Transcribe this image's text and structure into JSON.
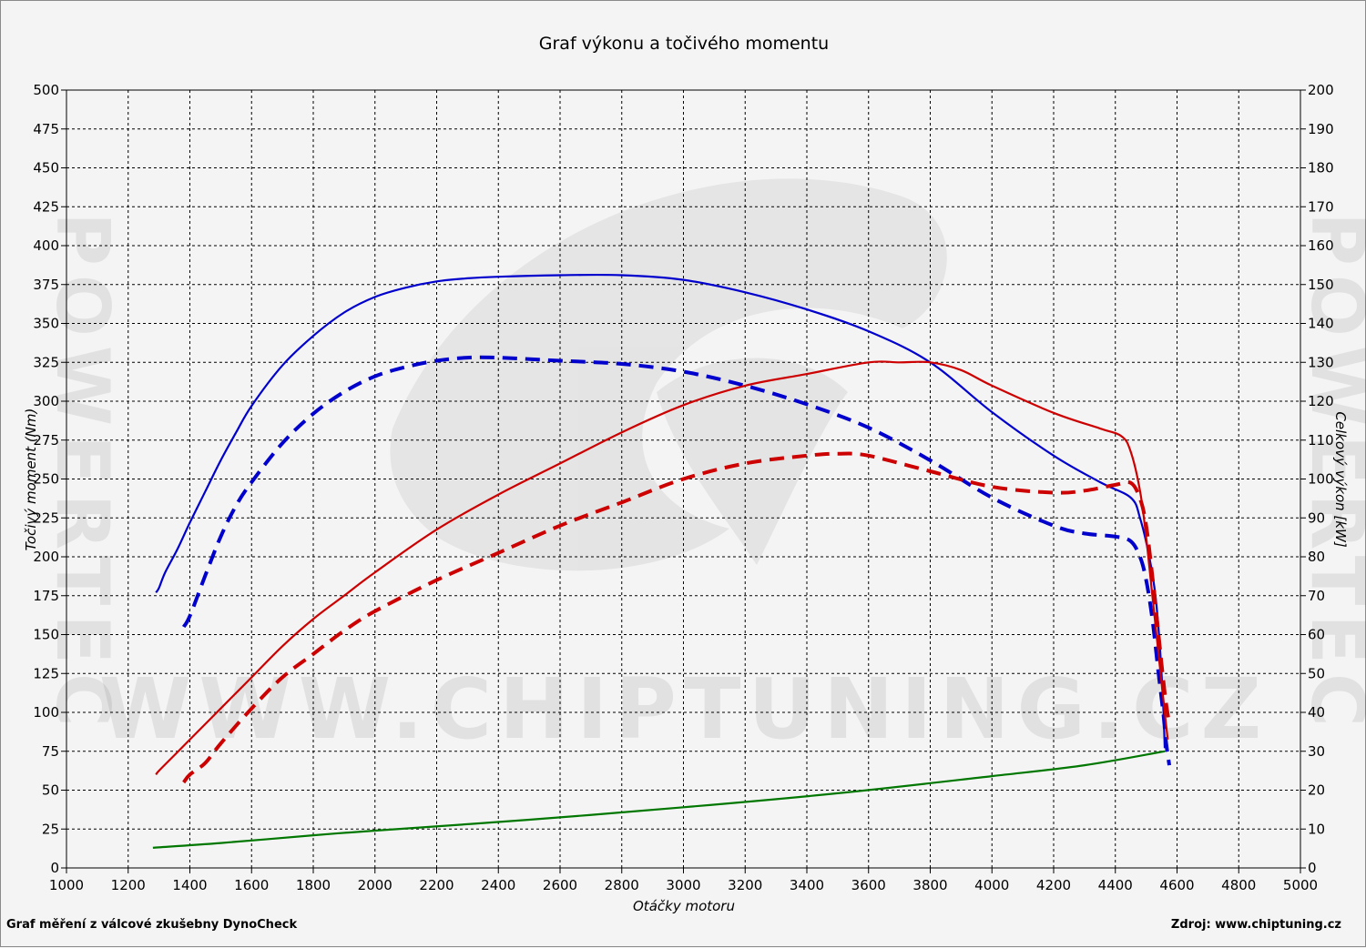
{
  "chart_data": {
    "type": "line",
    "title": "Graf výkonu a točivého momentu",
    "xlabel": "Otáčky motoru",
    "ylabel_left": "Točivý moment (Nm)",
    "ylabel_right": "Celkový výkon [kW]",
    "xlim": [
      1000,
      5000
    ],
    "ylim_left": [
      0,
      500
    ],
    "ylim_right": [
      0,
      200
    ],
    "x_ticks": [
      1000,
      1200,
      1400,
      1600,
      1800,
      2000,
      2200,
      2400,
      2600,
      2800,
      3000,
      3200,
      3400,
      3600,
      3800,
      4000,
      4200,
      4400,
      4600,
      4800,
      5000
    ],
    "y_left_ticks": [
      0,
      25,
      50,
      75,
      100,
      125,
      150,
      175,
      200,
      225,
      250,
      275,
      300,
      325,
      350,
      375,
      400,
      425,
      450,
      475,
      500
    ],
    "y_right_ticks": [
      0,
      10,
      20,
      30,
      40,
      50,
      60,
      70,
      80,
      90,
      100,
      110,
      120,
      130,
      140,
      150,
      160,
      170,
      180,
      190,
      200
    ],
    "grid": true,
    "series": [
      {
        "key": "torque_tuned",
        "axis": "left",
        "color": "#0000cc",
        "dash": false,
        "x": [
          1290,
          1300,
          1320,
          1360,
          1400,
          1450,
          1500,
          1550,
          1600,
          1700,
          1800,
          1900,
          2000,
          2100,
          2200,
          2300,
          2400,
          2600,
          2800,
          3000,
          3200,
          3400,
          3600,
          3800,
          4000,
          4200,
          4350,
          4450,
          4480,
          4510,
          4530,
          4545,
          4555,
          4560
        ],
        "y": [
          177,
          180,
          190,
          205,
          222,
          242,
          262,
          280,
          297,
          323,
          342,
          357,
          367,
          373,
          377,
          379,
          380,
          381,
          381,
          378,
          370,
          359,
          345,
          325,
          293,
          265,
          248,
          238,
          225,
          200,
          175,
          140,
          105,
          77
        ]
      },
      {
        "key": "torque_stock",
        "axis": "left",
        "color": "#0000cc",
        "dash": true,
        "x": [
          1380,
          1400,
          1450,
          1500,
          1550,
          1600,
          1700,
          1800,
          1900,
          2000,
          2100,
          2200,
          2300,
          2400,
          2600,
          2800,
          3000,
          3200,
          3400,
          3600,
          3800,
          4000,
          4200,
          4300,
          4400,
          4450,
          4480,
          4500,
          4520,
          4540,
          4555,
          4565,
          4575
        ],
        "y": [
          155,
          162,
          188,
          213,
          233,
          248,
          273,
          292,
          306,
          316,
          322,
          326,
          328,
          328,
          326,
          324,
          319,
          310,
          298,
          283,
          262,
          238,
          220,
          215,
          213,
          210,
          200,
          185,
          160,
          125,
          100,
          80,
          66
        ]
      },
      {
        "key": "power_tuned",
        "axis": "right",
        "color": "#cc0000",
        "dash": false,
        "x": [
          1290,
          1300,
          1350,
          1400,
          1500,
          1600,
          1700,
          1800,
          1900,
          2000,
          2200,
          2400,
          2600,
          2800,
          3000,
          3200,
          3400,
          3600,
          3700,
          3800,
          3900,
          4000,
          4200,
          4350,
          4420,
          4450,
          4480,
          4500,
          4520,
          4540,
          4560,
          4570
        ],
        "y": [
          24,
          25,
          29,
          33,
          41,
          49,
          57,
          64,
          70,
          76,
          87,
          96,
          104,
          112,
          119,
          124,
          127,
          130,
          130,
          130,
          128,
          124,
          117,
          113,
          111,
          107,
          97,
          85,
          70,
          55,
          40,
          33
        ]
      },
      {
        "key": "power_stock",
        "axis": "right",
        "color": "#cc0000",
        "dash": true,
        "x": [
          1380,
          1400,
          1450,
          1500,
          1600,
          1700,
          1800,
          1900,
          2000,
          2200,
          2400,
          2600,
          2800,
          3000,
          3200,
          3400,
          3500,
          3600,
          3800,
          4000,
          4200,
          4300,
          4400,
          4450,
          4480,
          4500,
          4520,
          4540,
          4560,
          4575
        ],
        "y": [
          22,
          24,
          27,
          32,
          41,
          49,
          55,
          61,
          66,
          74,
          81,
          88,
          94,
          100,
          104,
          106,
          106.5,
          106,
          102,
          98,
          96.5,
          97,
          98.5,
          99,
          95,
          88,
          75,
          60,
          45,
          37
        ]
      },
      {
        "key": "loss",
        "axis": "left",
        "color": "#007700",
        "dash": false,
        "x": [
          1280,
          1500,
          1800,
          2000,
          2500,
          3000,
          3500,
          4000,
          4300,
          4560
        ],
        "y": [
          13,
          16,
          21,
          24,
          31,
          39,
          48,
          59,
          66,
          75
        ]
      }
    ]
  },
  "watermark": {
    "center": "WWW.CHIPTUNING.CZ",
    "side": "POWERTEC"
  },
  "footer": {
    "left": "Graf měření z válcové zkušebny DynoCheck",
    "right": "Zdroj: www.chiptuning.cz"
  }
}
